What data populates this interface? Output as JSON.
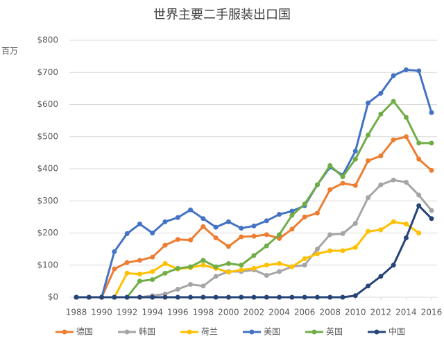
{
  "chart_data": {
    "type": "line",
    "title": "世界主要二手服装出口国",
    "y_label": "百万",
    "x": [
      1988,
      1989,
      1990,
      1991,
      1992,
      1993,
      1994,
      1995,
      1996,
      1997,
      1998,
      1999,
      2000,
      2001,
      2002,
      2003,
      2004,
      2005,
      2006,
      2007,
      2008,
      2009,
      2010,
      2011,
      2012,
      2013,
      2014,
      2015,
      2016
    ],
    "xlim": [
      1988,
      2016
    ],
    "xticks": [
      1988,
      1990,
      1992,
      1994,
      1996,
      1998,
      2000,
      2002,
      2004,
      2006,
      2008,
      2010,
      2012,
      2014,
      2016
    ],
    "ylim": [
      0,
      800
    ],
    "yticks": [
      {
        "value": 0,
        "label": "$0"
      },
      {
        "value": 100,
        "label": "$100"
      },
      {
        "value": 200,
        "label": "$200"
      },
      {
        "value": 300,
        "label": "$300"
      },
      {
        "value": 400,
        "label": "$400"
      },
      {
        "value": 500,
        "label": "$500"
      },
      {
        "value": 600,
        "label": "$600"
      },
      {
        "value": 700,
        "label": "$700"
      },
      {
        "value": 800,
        "label": "$800"
      }
    ],
    "grid": true,
    "legend": "bottom",
    "series": [
      {
        "name": "德国",
        "color": "#ed7d31",
        "values": [
          0,
          0,
          0,
          88,
          108,
          115,
          125,
          162,
          180,
          178,
          220,
          185,
          158,
          188,
          190,
          195,
          183,
          212,
          250,
          262,
          335,
          355,
          348,
          425,
          440,
          490,
          500,
          430,
          395
        ]
      },
      {
        "name": "韩国",
        "color": "#a5a5a5",
        "values": [
          0,
          0,
          0,
          0,
          0,
          0,
          5,
          10,
          25,
          40,
          35,
          65,
          80,
          80,
          85,
          68,
          80,
          95,
          100,
          150,
          195,
          198,
          230,
          310,
          350,
          365,
          358,
          318,
          270
        ]
      },
      {
        "name": "荷兰",
        "color": "#ffc000",
        "values": [
          0,
          0,
          0,
          0,
          75,
          72,
          80,
          105,
          88,
          92,
          100,
          90,
          78,
          85,
          90,
          100,
          105,
          95,
          120,
          135,
          145,
          145,
          155,
          205,
          210,
          235,
          228,
          200,
          null
        ]
      },
      {
        "name": "美国",
        "color": "#4472c4",
        "values": [
          0,
          0,
          0,
          142,
          198,
          228,
          200,
          235,
          248,
          272,
          245,
          218,
          235,
          215,
          222,
          238,
          258,
          268,
          285,
          350,
          405,
          380,
          455,
          605,
          635,
          690,
          708,
          705,
          575
        ]
      },
      {
        "name": "英国",
        "color": "#70ad47",
        "values": [
          0,
          0,
          0,
          0,
          0,
          50,
          55,
          75,
          90,
          95,
          115,
          95,
          105,
          100,
          130,
          160,
          195,
          255,
          290,
          350,
          410,
          375,
          430,
          505,
          570,
          610,
          560,
          480,
          480
        ]
      },
      {
        "name": "中国",
        "color": "#264478",
        "values": [
          0,
          0,
          0,
          0,
          0,
          0,
          0,
          0,
          0,
          0,
          0,
          0,
          0,
          0,
          0,
          0,
          0,
          0,
          0,
          0,
          0,
          0,
          5,
          35,
          65,
          100,
          185,
          285,
          245
        ]
      }
    ]
  }
}
